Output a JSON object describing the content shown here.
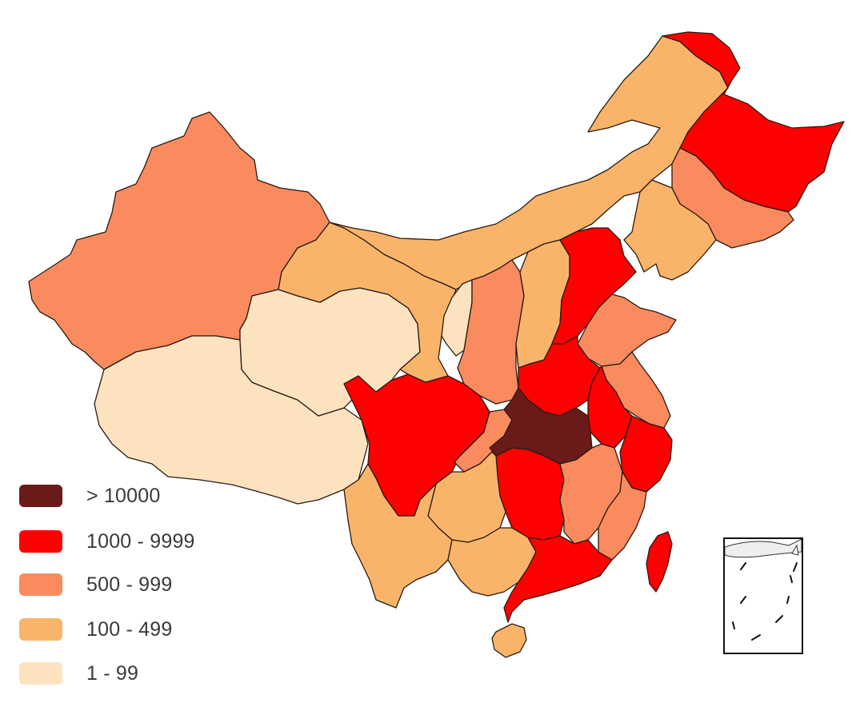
{
  "legend": {
    "items": [
      {
        "label": "> 10000",
        "color": "#6b1a1a"
      },
      {
        "label": "1000 - 9999",
        "color": "#ff0000"
      },
      {
        "label": "500 - 999",
        "color": "#f98b5e"
      },
      {
        "label": "100 - 499",
        "color": "#fab46a"
      },
      {
        "label": "1 - 99",
        "color": "#fde2c0"
      }
    ]
  },
  "map": {
    "regions": [
      {
        "name": "xinjiang",
        "tier": 2
      },
      {
        "name": "tibet",
        "tier": 4
      },
      {
        "name": "qinghai",
        "tier": 4
      },
      {
        "name": "gansu",
        "tier": 3
      },
      {
        "name": "inner-mongolia",
        "tier": 3
      },
      {
        "name": "heilongjiang",
        "tier": 1
      },
      {
        "name": "jilin",
        "tier": 2
      },
      {
        "name": "liaoning",
        "tier": 3
      },
      {
        "name": "ningxia",
        "tier": 4
      },
      {
        "name": "shaanxi",
        "tier": 2
      },
      {
        "name": "shanxi",
        "tier": 3
      },
      {
        "name": "hebei",
        "tier": 1
      },
      {
        "name": "shandong",
        "tier": 2
      },
      {
        "name": "henan",
        "tier": 1
      },
      {
        "name": "jiangsu",
        "tier": 2
      },
      {
        "name": "anhui",
        "tier": 1
      },
      {
        "name": "zhejiang",
        "tier": 1
      },
      {
        "name": "sichuan",
        "tier": 1
      },
      {
        "name": "chongqing",
        "tier": 2
      },
      {
        "name": "hubei",
        "tier": 0
      },
      {
        "name": "hunan",
        "tier": 1
      },
      {
        "name": "jiangxi",
        "tier": 2
      },
      {
        "name": "fujian",
        "tier": 2
      },
      {
        "name": "guizhou",
        "tier": 3
      },
      {
        "name": "yunnan",
        "tier": 3
      },
      {
        "name": "guangxi",
        "tier": 3
      },
      {
        "name": "guangdong",
        "tier": 1
      },
      {
        "name": "hainan",
        "tier": 3
      },
      {
        "name": "taiwan",
        "tier": 1
      }
    ]
  }
}
